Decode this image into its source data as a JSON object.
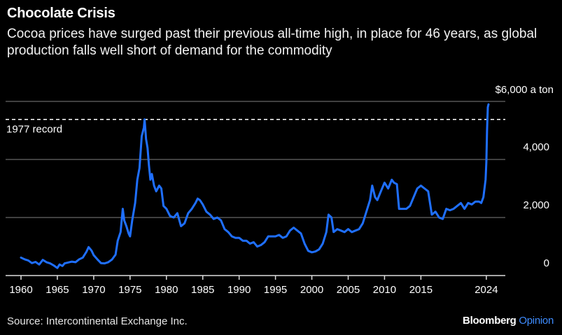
{
  "header": {
    "title": "Chocolate Crisis",
    "subtitle": "Cocoa prices have surged past their previous all-time high, in place for 46 years, as global production falls well short of demand for the commodity"
  },
  "footer": {
    "source": "Source: Intercontinental Exchange Inc.",
    "brand_main": "Bloomberg",
    "brand_accent": "Opinion"
  },
  "colors": {
    "background": "#000000",
    "line": "#1f6fff",
    "grid": "#555555",
    "text": "#ffffff",
    "brand_accent": "#3e8cff"
  },
  "chart_data": {
    "type": "line",
    "title": "Chocolate Crisis",
    "xlabel": "",
    "ylabel": "",
    "xlim": [
      1960,
      2024.3
    ],
    "ylim": [
      0,
      6000
    ],
    "x_ticks": [
      {
        "value": 1960,
        "label": "1960"
      },
      {
        "value": 1965,
        "label": "1965"
      },
      {
        "value": 1970,
        "label": "1970"
      },
      {
        "value": 1975,
        "label": "1975"
      },
      {
        "value": 1980,
        "label": "1980"
      },
      {
        "value": 1985,
        "label": "1985"
      },
      {
        "value": 1990,
        "label": "1990"
      },
      {
        "value": 1995,
        "label": "1995"
      },
      {
        "value": 2000,
        "label": "2000"
      },
      {
        "value": 2005,
        "label": "2005"
      },
      {
        "value": 2010,
        "label": "2010"
      },
      {
        "value": 2015,
        "label": "2015"
      },
      {
        "value": 2024,
        "label": "2024"
      }
    ],
    "y_ticks": [
      {
        "value": 0,
        "label": "0"
      },
      {
        "value": 2000,
        "label": "2,000"
      },
      {
        "value": 4000,
        "label": "4,000"
      },
      {
        "value": 6000,
        "label": "$6,000 a ton"
      }
    ],
    "grid": true,
    "reference_line": {
      "value": 5380,
      "label": "1977 record"
    },
    "series": [
      {
        "x": [
          1960,
          1960.5,
          1961,
          1961.5,
          1962,
          1962.5,
          1963,
          1963.5,
          1964,
          1964.5,
          1965,
          1965.3,
          1965.7,
          1966,
          1966.5,
          1967,
          1967.5,
          1968,
          1968.5,
          1969,
          1969.3,
          1969.7,
          1970,
          1970.5,
          1971,
          1971.5,
          1972,
          1972.5,
          1973,
          1973.3,
          1973.7,
          1974,
          1974.2,
          1974.5,
          1974.8,
          1975,
          1975.3,
          1975.7,
          1976,
          1976.3,
          1976.6,
          1976.9,
          1977,
          1977.2,
          1977.4,
          1977.6,
          1977.8,
          1978,
          1978.3,
          1978.6,
          1979,
          1979.3,
          1979.6,
          1980,
          1980.5,
          1981,
          1981.5,
          1982,
          1982.5,
          1983,
          1983.5,
          1984,
          1984.3,
          1984.6,
          1985,
          1985.5,
          1986,
          1986.5,
          1987,
          1987.5,
          1988,
          1988.5,
          1989,
          1989.5,
          1990,
          1990.5,
          1991,
          1991.5,
          1992,
          1992.5,
          1993,
          1993.5,
          1994,
          1994.5,
          1995,
          1995.5,
          1996,
          1996.5,
          1997,
          1997.5,
          1998,
          1998.5,
          1999,
          1999.5,
          2000,
          2000.5,
          2001,
          2001.5,
          2002,
          2002.3,
          2002.7,
          2003,
          2003.5,
          2004,
          2004.5,
          2005,
          2005.5,
          2006,
          2006.5,
          2007,
          2007.5,
          2008,
          2008.3,
          2008.7,
          2009,
          2009.5,
          2010,
          2010.5,
          2011,
          2011.3,
          2011.7,
          2012,
          2012.5,
          2013,
          2013.5,
          2014,
          2014.5,
          2015,
          2015.5,
          2016,
          2016.5,
          2017,
          2017.5,
          2018,
          2018.5,
          2019,
          2019.5,
          2020,
          2020.5,
          2021,
          2021.5,
          2022,
          2022.5,
          2023,
          2023.3,
          2023.6,
          2023.9,
          2024,
          2024.1,
          2024.2,
          2024.3
        ],
        "values": [
          620,
          560,
          520,
          430,
          470,
          380,
          540,
          460,
          420,
          350,
          260,
          380,
          330,
          420,
          450,
          480,
          460,
          560,
          620,
          820,
          980,
          860,
          700,
          560,
          430,
          420,
          460,
          550,
          720,
          1200,
          1500,
          2300,
          1900,
          1700,
          1450,
          1350,
          1900,
          2500,
          3300,
          3700,
          4800,
          5100,
          5380,
          4700,
          4400,
          3800,
          3300,
          3500,
          3100,
          2900,
          3100,
          3000,
          2400,
          2300,
          2050,
          2000,
          2150,
          1700,
          1800,
          2150,
          2300,
          2500,
          2650,
          2600,
          2450,
          2200,
          2100,
          1950,
          2000,
          1900,
          1600,
          1500,
          1350,
          1300,
          1300,
          1200,
          1200,
          1100,
          1150,
          1000,
          1050,
          1150,
          1350,
          1350,
          1350,
          1400,
          1300,
          1350,
          1550,
          1650,
          1550,
          1450,
          1100,
          850,
          800,
          830,
          900,
          1100,
          1500,
          2100,
          2000,
          1500,
          1600,
          1550,
          1500,
          1600,
          1500,
          1550,
          1600,
          1800,
          2200,
          2600,
          3100,
          2700,
          2600,
          2900,
          3200,
          3000,
          3300,
          3200,
          3150,
          2300,
          2300,
          2300,
          2400,
          2700,
          3000,
          3100,
          3000,
          2900,
          2100,
          2200,
          2000,
          1950,
          2300,
          2250,
          2300,
          2400,
          2500,
          2300,
          2500,
          2450,
          2550,
          2550,
          2500,
          2700,
          3300,
          3900,
          5000,
          5800,
          5900
        ]
      }
    ]
  }
}
